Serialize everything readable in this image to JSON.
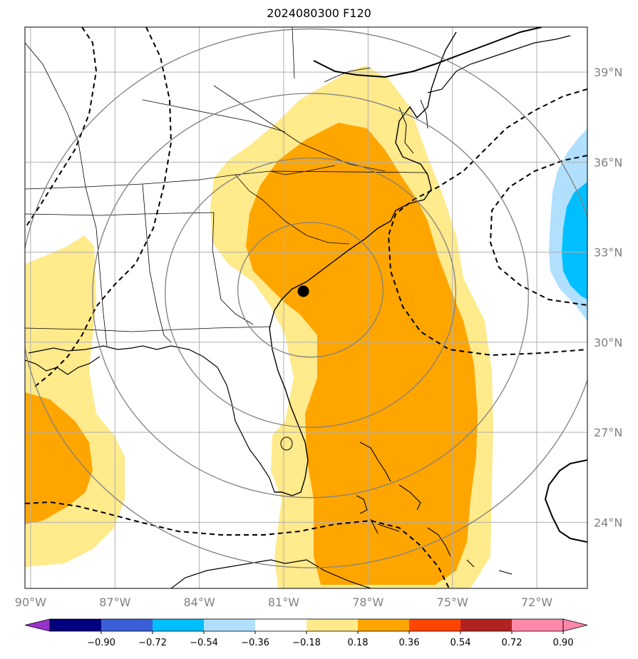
{
  "title": "2024080300 F120",
  "colors": {
    "graticule": "#b0b0b0",
    "range_rings": "#808080",
    "coast": "#000000",
    "shade_030": "#ffea8c",
    "shade_050": "#ffa500",
    "shade_neg020": "#b0e0fe",
    "shade_neg040": "#00bfff"
  },
  "map": {
    "lon_range": [
      -90.2,
      -70.2
    ],
    "lat_range": [
      21.8,
      40.5
    ],
    "lon_ticks": [
      -90,
      -87,
      -84,
      -81,
      -78,
      -75,
      -72
    ],
    "lat_ticks": [
      24,
      27,
      30,
      33,
      36,
      39
    ],
    "lon_labels": [
      "90°W",
      "87°W",
      "84°W",
      "81°W",
      "78°W",
      "75°W",
      "72°W"
    ],
    "lat_labels": [
      "24°N",
      "27°N",
      "30°N",
      "33°N",
      "36°N",
      "39°N"
    ],
    "center_marker": {
      "lon": -80.3,
      "lat": 31.7,
      "name": "storm-center"
    },
    "range_rings_count": 4
  },
  "colorbar": {
    "ticks": [
      "−0.90",
      "−0.72",
      "−0.54",
      "−0.36",
      "−0.18",
      "0.18",
      "0.36",
      "0.54",
      "0.72",
      "0.90"
    ],
    "under_color": "#9932cc",
    "over_color": "#ff88aa",
    "bins": [
      "#000080",
      "#3a5fd9",
      "#00bfff",
      "#b0e0fe",
      "#ffffff",
      "#ffea8c",
      "#ffa500",
      "#ff4500",
      "#b22222",
      "#ff88aa"
    ]
  }
}
